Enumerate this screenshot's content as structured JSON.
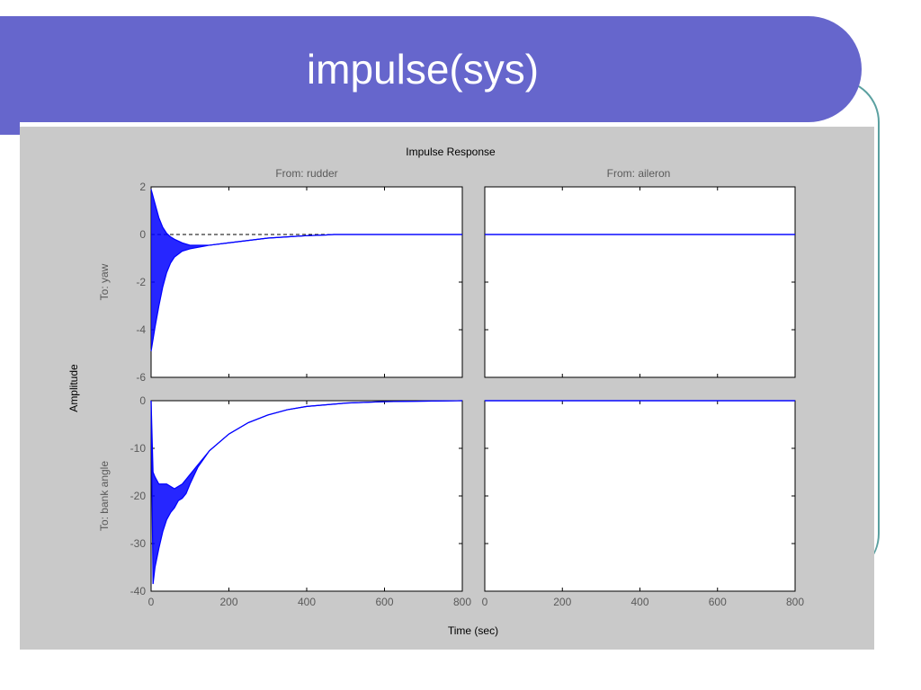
{
  "slide": {
    "title": "impulse(sys)"
  },
  "chart_data": {
    "type": "line",
    "title": "Impulse Response",
    "xlabel": "Time (sec)",
    "ylabel": "Amplitude",
    "grid": false,
    "columns": [
      "From: rudder",
      "From: aileron"
    ],
    "rows": [
      "To: yaw",
      "To: bank angle"
    ],
    "xlim": [
      0,
      800
    ],
    "xticks": [
      "0",
      "200",
      "400",
      "600",
      "800"
    ],
    "series_color": "#0000ff",
    "subplots": [
      {
        "row": "To: yaw",
        "col": "From: rudder",
        "ylim": [
          -6,
          2
        ],
        "yticks": [
          "-6",
          "-4",
          "-2",
          "0",
          "2"
        ],
        "x": [
          0,
          10,
          20,
          30,
          40,
          50,
          60,
          80,
          100,
          150,
          200,
          250,
          300,
          350,
          400,
          450,
          470,
          800
        ],
        "y_upper": [
          1.9,
          1.3,
          0.7,
          0.3,
          0.05,
          -0.1,
          -0.2,
          -0.35,
          -0.45,
          -0.45,
          -0.35,
          -0.25,
          -0.15,
          -0.1,
          -0.05,
          -0.02,
          0,
          0
        ],
        "y_lower": [
          -4.9,
          -3.9,
          -3.0,
          -2.2,
          -1.6,
          -1.2,
          -0.95,
          -0.7,
          -0.6,
          -0.45,
          -0.35,
          -0.25,
          -0.15,
          -0.1,
          -0.05,
          -0.02,
          0,
          0
        ],
        "steady_state": 0
      },
      {
        "row": "To: yaw",
        "col": "From: aileron",
        "ylim": [
          -6,
          2
        ],
        "yticks": [],
        "x": [
          0,
          800
        ],
        "y_upper": [
          0,
          0
        ],
        "y_lower": [
          0,
          0
        ],
        "steady_state": 0
      },
      {
        "row": "To: bank angle",
        "col": "From: rudder",
        "ylim": [
          -40,
          0
        ],
        "yticks": [
          "-40",
          "-30",
          "-20",
          "-10",
          "0"
        ],
        "x": [
          0,
          5,
          10,
          20,
          30,
          40,
          50,
          60,
          70,
          80,
          90,
          100,
          120,
          150,
          200,
          250,
          300,
          350,
          400,
          500,
          600,
          700,
          800
        ],
        "y_upper": [
          0,
          -15,
          -16,
          -17.5,
          -17.5,
          -17.5,
          -18,
          -18.5,
          -18,
          -17.5,
          -16.5,
          -15.5,
          -13.5,
          -10.5,
          -7,
          -4.6,
          -3.0,
          -1.9,
          -1.2,
          -0.5,
          -0.2,
          -0.1,
          0
        ],
        "y_lower": [
          0,
          -38.5,
          -35,
          -31,
          -27.5,
          -25,
          -23.5,
          -22.5,
          -21,
          -20.5,
          -19.5,
          -17.5,
          -14,
          -10.5,
          -7,
          -4.6,
          -3.0,
          -1.9,
          -1.2,
          -0.5,
          -0.2,
          -0.1,
          0
        ],
        "steady_state": 0
      },
      {
        "row": "To: bank angle",
        "col": "From: aileron",
        "ylim": [
          -40,
          0
        ],
        "yticks": [],
        "x": [
          0,
          800
        ],
        "y_upper": [
          0,
          0
        ],
        "y_lower": [
          0,
          0
        ],
        "steady_state": 0
      }
    ]
  }
}
